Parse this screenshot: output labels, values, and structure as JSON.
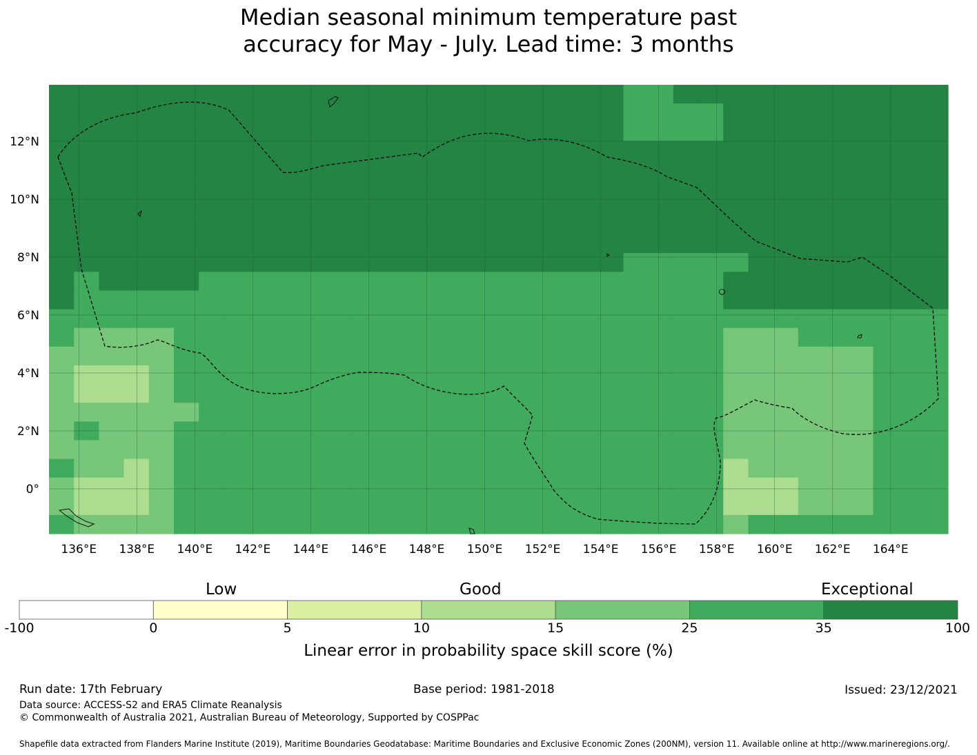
{
  "title": {
    "line1": "Median seasonal minimum temperature past",
    "line2": "accuracy for May - July. Lead time: 3 months"
  },
  "map": {
    "lon_range": [
      134.97,
      165.98
    ],
    "lat_range": [
      -1.55,
      13.95
    ],
    "x_ticks": [
      {
        "value": 136,
        "label": "136°E"
      },
      {
        "value": 138,
        "label": "138°E"
      },
      {
        "value": 140,
        "label": "140°E"
      },
      {
        "value": 142,
        "label": "142°E"
      },
      {
        "value": 144,
        "label": "144°E"
      },
      {
        "value": 146,
        "label": "146°E"
      },
      {
        "value": 148,
        "label": "148°E"
      },
      {
        "value": 150,
        "label": "150°E"
      },
      {
        "value": 152,
        "label": "152°E"
      },
      {
        "value": 154,
        "label": "154°E"
      },
      {
        "value": 156,
        "label": "156°E"
      },
      {
        "value": 158,
        "label": "158°E"
      },
      {
        "value": 160,
        "label": "160°E"
      },
      {
        "value": 162,
        "label": "162°E"
      },
      {
        "value": 164,
        "label": "164°E"
      }
    ],
    "y_ticks": [
      {
        "value": 12,
        "label": "12°N"
      },
      {
        "value": 10,
        "label": "10°N"
      },
      {
        "value": 8,
        "label": "8°N"
      },
      {
        "value": 6,
        "label": "6°N"
      },
      {
        "value": 4,
        "label": "4°N"
      },
      {
        "value": 2,
        "label": "2°N"
      },
      {
        "value": 0,
        "label": "0°"
      }
    ],
    "cell_size_deg": 0.833,
    "category_colors": [
      "#ffffcc",
      "#d9f0a3",
      "#addd8e",
      "#78c679",
      "#41ab5d",
      "#238443"
    ],
    "grid_rows_north_to_south": [
      "555555555555555555555554455555555555",
      "555555555555555555555554444555555555",
      "555555555555555555555554444555555555",
      "555555555555555555555555555555555555",
      "555555555555555555555555555555555555",
      "555555555555555555555555555555555555",
      "555555555555555555555555555555555555",
      "555555555555555555555555555555555555",
      "555555555555555555555555555555555555",
      "555555555555555555555554444455555555",
      "545555444444444444444444444555555555",
      "544444444444444444444444444555555555",
      "444444444444444444444444444444444444",
      "433334444444444444444444444333444444",
      "333334444444444444444444444333333444",
      "322234444444444444444444444333333444",
      "322234444444444444444444444333333444",
      "333333444444444444444444444333333444",
      "343334444444444444444444444333333444",
      "333334444444444444444444444333333444",
      "433234444444444444444444444233333444",
      "322234444444444444444444444222333444",
      "322234444444444444444444444222333444",
      "433334444444444444444444444344444444"
    ],
    "eez_label": "",
    "legend_position": "bottom"
  },
  "colorbar": {
    "words": {
      "low": "Low",
      "good": "Good",
      "exceptional": "Exceptional"
    },
    "boundaries": [
      "-100",
      "0",
      "5",
      "10",
      "15",
      "25",
      "35",
      "100"
    ],
    "colors": [
      "#ffffff",
      "#ffffcc",
      "#d9f0a3",
      "#addd8e",
      "#78c679",
      "#41ab5d",
      "#238443"
    ],
    "title": "Linear error in probability space skill score (%)"
  },
  "footer": {
    "run_date": "Run date: 17th February",
    "base_period": "Base period: 1981-2018",
    "issued": "Issued: 23/12/2021",
    "data_source": "Data source: ACCESS-S2 and ERA5 Climate Reanalysis",
    "copyright": "© Commonwealth of Australia 2021, Australian Bureau of Meteorology, Supported by COSPPac",
    "shapefile": "Shapefile data extracted from Flanders Marine Institute (2019), Maritime Boundaries Geodatabase: Maritime Boundaries and Exclusive Economic Zones (200NM), version 11. Available online at http://www.marineregions.org/."
  }
}
